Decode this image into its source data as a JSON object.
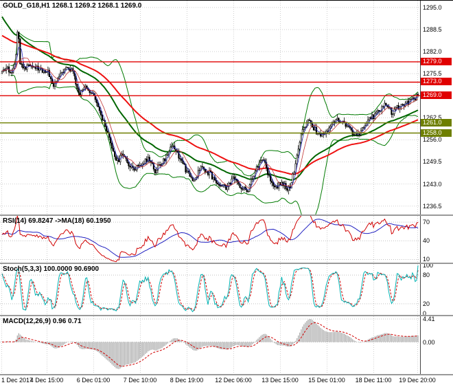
{
  "terminal": {
    "platform_hint": "MetaTrader-style chart window",
    "bg": "#ffffff",
    "grid_color": "#cfcfcf",
    "axis_text_color": "#000000"
  },
  "time_axis": {
    "labels": [
      "1 Dec 2017",
      "4 Dec 15:00",
      "6 Dec 01:00",
      "7 Dec 10:00",
      "8 Dec 19:00",
      "12 Dec 06:00",
      "13 Dec 15:00",
      "15 Dec 01:00",
      "18 Dec 11:00",
      "19 Dec 20:00"
    ]
  },
  "chart_data": [
    {
      "id": "main",
      "type": "candlestick",
      "symbol": "GOLD_G18",
      "timeframe": "H1",
      "label": "GOLD_G18,H1 1268.1 1269.2 1268.1 1269.0",
      "ohlc": {
        "open": 1268.1,
        "high": 1269.2,
        "low": 1268.1,
        "close": 1269.0
      },
      "y_range": [
        1234.0,
        1297.0
      ],
      "y_ticks": [
        {
          "v": 1295.0,
          "label": "1295.0"
        },
        {
          "v": 1288.5,
          "label": "1288.5"
        },
        {
          "v": 1282.0,
          "label": "1282.0"
        },
        {
          "v": 1275.5,
          "label": "1275.5"
        },
        {
          "v": 1269.0,
          "label": "1269.0"
        },
        {
          "v": 1262.5,
          "label": "1262.5"
        },
        {
          "v": 1256.0,
          "label": "1256.0"
        },
        {
          "v": 1249.5,
          "label": "1249.5"
        },
        {
          "v": 1243.0,
          "label": "1243.0"
        },
        {
          "v": 1236.5,
          "label": "1236.5"
        }
      ],
      "levels": [
        {
          "v": 1279.0,
          "label": "1279.0",
          "color": "#e00000"
        },
        {
          "v": 1273.0,
          "label": "1273.0",
          "color": "#e00000"
        },
        {
          "v": 1269.0,
          "label": "1269.0",
          "color": "#e00000"
        },
        {
          "v": 1261.0,
          "label": "1261.0",
          "color": "#6e7f00"
        },
        {
          "v": 1258.0,
          "label": "1258.0",
          "color": "#6e7f00"
        }
      ],
      "price_path": [
        [
          0.0,
          1275.5
        ],
        [
          0.01,
          1277.0
        ],
        [
          0.022,
          1276.0
        ],
        [
          0.032,
          1279.0
        ],
        [
          0.038,
          1291.0
        ],
        [
          0.044,
          1278.0
        ],
        [
          0.055,
          1277.0
        ],
        [
          0.07,
          1278.5
        ],
        [
          0.085,
          1277.0
        ],
        [
          0.1,
          1276.5
        ],
        [
          0.111,
          1276.0
        ],
        [
          0.125,
          1271.5
        ],
        [
          0.14,
          1276.0
        ],
        [
          0.155,
          1277.5
        ],
        [
          0.17,
          1276.0
        ],
        [
          0.185,
          1269.0
        ],
        [
          0.2,
          1272.0
        ],
        [
          0.215,
          1270.0
        ],
        [
          0.222,
          1268.0
        ],
        [
          0.235,
          1264.0
        ],
        [
          0.25,
          1259.0
        ],
        [
          0.265,
          1253.0
        ],
        [
          0.278,
          1249.5
        ],
        [
          0.292,
          1252.0
        ],
        [
          0.31,
          1247.5
        ],
        [
          0.333,
          1248.5
        ],
        [
          0.35,
          1250.5
        ],
        [
          0.368,
          1247.0
        ],
        [
          0.39,
          1250.0
        ],
        [
          0.41,
          1255.0
        ],
        [
          0.43,
          1250.0
        ],
        [
          0.444,
          1246.5
        ],
        [
          0.46,
          1244.0
        ],
        [
          0.48,
          1248.0
        ],
        [
          0.5,
          1246.0
        ],
        [
          0.52,
          1243.0
        ],
        [
          0.54,
          1242.0
        ],
        [
          0.556,
          1244.5
        ],
        [
          0.575,
          1242.0
        ],
        [
          0.59,
          1241.0
        ],
        [
          0.605,
          1245.5
        ],
        [
          0.625,
          1251.0
        ],
        [
          0.645,
          1244.0
        ],
        [
          0.66,
          1242.0
        ],
        [
          0.667,
          1243.5
        ],
        [
          0.69,
          1241.5
        ],
        [
          0.705,
          1248.0
        ],
        [
          0.72,
          1258.0
        ],
        [
          0.735,
          1261.5
        ],
        [
          0.75,
          1259.5
        ],
        [
          0.765,
          1257.0
        ],
        [
          0.778,
          1258.5
        ],
        [
          0.8,
          1262.0
        ],
        [
          0.82,
          1261.0
        ],
        [
          0.84,
          1258.5
        ],
        [
          0.858,
          1257.0
        ],
        [
          0.875,
          1261.0
        ],
        [
          0.889,
          1262.5
        ],
        [
          0.905,
          1264.5
        ],
        [
          0.92,
          1266.5
        ],
        [
          0.938,
          1264.0
        ],
        [
          0.955,
          1266.0
        ],
        [
          0.975,
          1267.0
        ],
        [
          1.0,
          1269.0
        ]
      ],
      "overlays": {
        "bollinger": {
          "period": 24,
          "deviation": 2.4,
          "color": "#007a00"
        },
        "ma_red": {
          "period": 80,
          "init": 1287,
          "color": "#ee1111"
        },
        "ma_green": {
          "period": 45,
          "init": 1293,
          "color": "#006600"
        },
        "ma_fast_blue": {
          "period": 4,
          "color": "#2a2ac0"
        },
        "ma_fast_red": {
          "period": 9,
          "color": "#c03030"
        }
      }
    },
    {
      "id": "rsi",
      "type": "line",
      "label": "RSI(14) 69.8247 ->MA(18) 60.1950",
      "params": {
        "period": 14,
        "ma_period": 18
      },
      "current": {
        "rsi": 69.8247,
        "ma": 60.195
      },
      "y_range": [
        5,
        80
      ],
      "y_ticks": [
        {
          "v": 70,
          "label": "70"
        },
        {
          "v": 40,
          "label": "40"
        },
        {
          "v": 10,
          "label": "10"
        }
      ],
      "colors": {
        "rsi": "#d00000",
        "ma": "#2020c0"
      }
    },
    {
      "id": "stoch",
      "type": "line",
      "label": "Stoch(5,3,3) 100.0000 90.6900",
      "params": {
        "k": 5,
        "d": 3,
        "slowing": 3
      },
      "current": {
        "k": 100.0,
        "d": 90.69
      },
      "y_range": [
        -3,
        103
      ],
      "y_ticks": [
        {
          "v": 100,
          "label": "100"
        },
        {
          "v": 80,
          "label": "80"
        },
        {
          "v": 20,
          "label": "20"
        },
        {
          "v": 0,
          "label": "0"
        }
      ],
      "levels": [
        80,
        20
      ],
      "colors": {
        "k": "#00b3b3",
        "d": "#d00000"
      }
    },
    {
      "id": "macd",
      "type": "histogram+line",
      "label": "MACD(12,26,9) 0.96 0.71",
      "params": {
        "fast": 12,
        "slow": 26,
        "signal": 9
      },
      "current": {
        "macd": 0.96,
        "signal": 0.71
      },
      "peak": 4.41,
      "y_ticks": [
        {
          "v": 4.41,
          "label": "4.41"
        },
        {
          "v": 0,
          "label": "0.00"
        }
      ],
      "colors": {
        "histogram": "#a6a6a6",
        "signal": "#d00000"
      }
    }
  ]
}
